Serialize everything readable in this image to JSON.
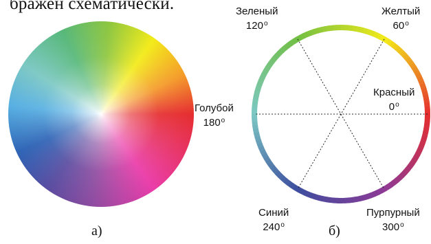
{
  "caption_fragment": "бражен схематически.",
  "panels": {
    "a": {
      "label": "а)",
      "hue_label": {
        "name": "Голубой",
        "degrees": "180"
      }
    },
    "b": {
      "label": "б)",
      "hues": [
        {
          "name": "Красный",
          "degrees": "0",
          "color": "#e52d2f"
        },
        {
          "name": "Желтый",
          "degrees": "60",
          "color": "#f3eb19"
        },
        {
          "name": "Зеленый",
          "degrees": "120",
          "color": "#72bf44"
        },
        {
          "name": "Голубой",
          "degrees": "180",
          "color": "#7cc8c4"
        },
        {
          "name": "Синий",
          "degrees": "240",
          "color": "#3d4e9f"
        },
        {
          "name": "Пурпурный",
          "degrees": "300",
          "color": "#8e3a96"
        }
      ]
    }
  }
}
